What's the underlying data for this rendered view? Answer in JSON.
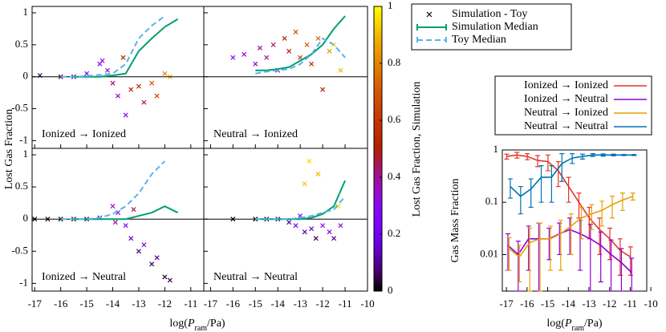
{
  "figure": {
    "y_label": "Lost Gas Fraction",
    "x_label_parts": [
      "log(",
      "P",
      "ram",
      "/Pa)"
    ],
    "colorbar": {
      "label": "Lost Gas Fraction, Simulation",
      "lim": [
        0,
        1
      ],
      "ticks": [
        0,
        0.2,
        0.4,
        0.6,
        0.8,
        1
      ]
    }
  },
  "chart_data": [
    {
      "type": "scatter",
      "label": "Ionized → Ionized",
      "xlim": [
        -17.1,
        -10.5
      ],
      "ylim": [
        -1.12,
        1.1
      ],
      "xticks": [
        -17,
        -16,
        -15,
        -14,
        -13,
        -12,
        -11
      ],
      "yticks": [
        -1,
        -0.5,
        0,
        0.5,
        1
      ],
      "series": [
        {
          "name": "Simulation - Toy",
          "x": [
            -16.8,
            -16,
            -15.5,
            -15,
            -14.5,
            -14.2,
            -14,
            -13.8,
            -13.5,
            -13.3,
            -13,
            -12.8,
            -12.5,
            -12.3,
            -12,
            -11.8,
            -13.6,
            -14.4
          ],
          "values": [
            0.02,
            0,
            0,
            0.05,
            0.2,
            0.1,
            -0.1,
            -0.3,
            -0.6,
            -0.2,
            -0.15,
            -0.4,
            -0.1,
            -0.3,
            0.05,
            0,
            0.3,
            0.25
          ],
          "c": [
            0.05,
            0.05,
            0.1,
            0.2,
            0.3,
            0.35,
            0.4,
            0.35,
            0.3,
            0.5,
            0.55,
            0.45,
            0.7,
            0.65,
            0.8,
            0.9,
            0.5,
            0.3
          ]
        },
        {
          "name": "Simulation Median",
          "color": "#009e73",
          "x": [
            -15.5,
            -15,
            -14.5,
            -14,
            -13.5,
            -13,
            -12.5,
            -12,
            -11.5
          ],
          "values": [
            0,
            0,
            0,
            0.02,
            0.05,
            0.4,
            0.6,
            0.78,
            0.9
          ]
        },
        {
          "name": "Toy Median",
          "color": "#56b4e9",
          "dashed": true,
          "x": [
            -16,
            -15.5,
            -15,
            -14.5,
            -14,
            -13.5,
            -13,
            -12.5,
            -12
          ],
          "values": [
            0,
            0,
            0.01,
            0.03,
            0.05,
            0.2,
            0.6,
            0.8,
            0.95
          ]
        }
      ]
    },
    {
      "type": "scatter",
      "label": "Neutral → Ionized",
      "xlim": [
        -17.3,
        -10
      ],
      "ylim": [
        -1.12,
        1.1
      ],
      "xticks": [
        -17,
        -16,
        -15,
        -14,
        -13,
        -12,
        -11,
        -10
      ],
      "yticks": [
        -1,
        -0.5,
        0,
        0.5,
        1
      ],
      "series": [
        {
          "x": [
            -16,
            -15.5,
            -15,
            -14.8,
            -14.5,
            -14.2,
            -14,
            -13.7,
            -13.5,
            -13.2,
            -13,
            -12.7,
            -12.5,
            -12.2,
            -12,
            -11.7,
            -11.5,
            -11.2
          ],
          "values": [
            0.3,
            0.35,
            0.2,
            0.45,
            0.3,
            0.5,
            0.1,
            0.6,
            0.4,
            0.7,
            0.3,
            0.5,
            0.2,
            0.6,
            -0.2,
            0.4,
            0.5,
            0.1
          ],
          "c": [
            0.3,
            0.35,
            0.35,
            0.4,
            0.4,
            0.45,
            0.3,
            0.55,
            0.5,
            0.65,
            0.6,
            0.7,
            0.55,
            0.75,
            0.5,
            0.85,
            0.95,
            0.9
          ]
        },
        {
          "color": "#009e73",
          "x": [
            -15,
            -14.5,
            -14,
            -13.5,
            -13,
            -12.5,
            -12,
            -11.5,
            -11
          ],
          "values": [
            0.1,
            0.1,
            0.12,
            0.15,
            0.25,
            0.35,
            0.5,
            0.75,
            0.95
          ]
        },
        {
          "color": "#56b4e9",
          "dashed": true,
          "x": [
            -15,
            -14.5,
            -14,
            -13.5,
            -13,
            -12.5,
            -12,
            -11.5,
            -11
          ],
          "values": [
            0.05,
            0.08,
            0.1,
            0.12,
            0.2,
            0.35,
            0.6,
            0.5,
            0.3
          ]
        }
      ]
    },
    {
      "type": "scatter",
      "label": "Ionized → Neutral",
      "xlim": [
        -17.1,
        -10.5
      ],
      "ylim": [
        -1.12,
        1.1
      ],
      "xticks": [
        -17,
        -16,
        -15,
        -14,
        -13,
        -12,
        -11
      ],
      "yticks": [
        -1,
        -0.5,
        0,
        0.5,
        1
      ],
      "series": [
        {
          "x": [
            -17,
            -16.5,
            -16,
            -15.5,
            -15,
            -14.5,
            -14,
            -13.8,
            -13.5,
            -13.3,
            -13,
            -12.8,
            -12.5,
            -12.3,
            -12,
            -11.8,
            -13.9,
            -13.2
          ],
          "values": [
            0,
            0,
            0,
            0,
            0,
            0.02,
            0.2,
            0.1,
            -0.1,
            -0.3,
            -0.5,
            -0.4,
            -0.7,
            -0.6,
            -0.9,
            -0.95,
            -0.05,
            0.15
          ],
          "c": [
            0,
            0,
            0,
            0.02,
            0.05,
            0.1,
            0.35,
            0.3,
            0.2,
            0.15,
            0.1,
            0.2,
            0.05,
            0.1,
            0.02,
            0.05,
            0.4,
            0.45
          ]
        },
        {
          "color": "#009e73",
          "x": [
            -15.5,
            -15,
            -14.5,
            -14,
            -13.5,
            -13,
            -12.5,
            -12,
            -11.5
          ],
          "values": [
            0,
            0,
            0,
            0,
            0,
            0.05,
            0.1,
            0.2,
            0.1
          ]
        },
        {
          "color": "#56b4e9",
          "dashed": true,
          "x": [
            -16,
            -15.5,
            -15,
            -14.5,
            -14,
            -13.5,
            -13,
            -12.5,
            -12
          ],
          "values": [
            0,
            0,
            0,
            0.02,
            0.08,
            0.2,
            0.4,
            0.7,
            0.9
          ]
        }
      ]
    },
    {
      "type": "scatter",
      "label": "Neutral → Neutral",
      "xlim": [
        -17.3,
        -10
      ],
      "ylim": [
        -1.12,
        1.1
      ],
      "xticks": [
        -17,
        -16,
        -15,
        -14,
        -13,
        -12,
        -11,
        -10
      ],
      "yticks": [
        -1,
        -0.5,
        0,
        0.5,
        1
      ],
      "series": [
        {
          "x": [
            -16,
            -15,
            -14.5,
            -14,
            -13.5,
            -13.2,
            -13,
            -12.8,
            -12.5,
            -12.3,
            -12,
            -11.7,
            -11.5,
            -11.2,
            -12.6,
            -12.2,
            -12.8,
            -11.3
          ],
          "values": [
            0,
            0,
            0,
            0,
            -0.05,
            -0.1,
            0.05,
            -0.2,
            -0.15,
            -0.3,
            -0.1,
            -0.2,
            -0.3,
            -0.1,
            0.9,
            0.7,
            0.55,
            0.2
          ],
          "c": [
            0,
            0,
            0.02,
            0.05,
            0.1,
            0.2,
            0.3,
            0.1,
            0.15,
            0.05,
            0.3,
            0.2,
            0.1,
            0.35,
            0.95,
            0.9,
            0.92,
            0.95
          ]
        },
        {
          "color": "#009e73",
          "x": [
            -15,
            -14.5,
            -14,
            -13.5,
            -13,
            -12.5,
            -12,
            -11.5,
            -11
          ],
          "values": [
            0,
            0,
            0,
            0,
            0,
            0.02,
            0.08,
            0.2,
            0.6
          ]
        },
        {
          "color": "#56b4e9",
          "dashed": true,
          "x": [
            -15,
            -14.5,
            -14,
            -13.5,
            -13,
            -12.5,
            -12,
            -11.5,
            -11
          ],
          "values": [
            0,
            0,
            0,
            0,
            0.02,
            0.05,
            0.1,
            0.15,
            0.35
          ]
        }
      ]
    },
    {
      "type": "line",
      "y_label": "Gas Mass Fraction",
      "x_label_parts": [
        "log(",
        "P",
        "ram",
        "/Pa)"
      ],
      "log_y": true,
      "xlim": [
        -17.2,
        -10.2
      ],
      "ylim": [
        0.002,
        1
      ],
      "xticks": [
        -17,
        -16,
        -15,
        -14,
        -13,
        -12,
        -11,
        -10
      ],
      "yticks": [
        0.01,
        0.1,
        1
      ],
      "x": [
        -16.9,
        -16.4,
        -15.9,
        -15.4,
        -14.9,
        -14.4,
        -13.9,
        -13.4,
        -12.9,
        -12.4,
        -11.9,
        -11.4,
        -10.9
      ],
      "series": [
        {
          "name": "Ionized → Ionized",
          "color": "#e5342a",
          "values": [
            0.75,
            0.8,
            0.75,
            0.63,
            0.6,
            0.4,
            0.2,
            0.1,
            0.05,
            0.03,
            0.02,
            0.012,
            0.009
          ],
          "errors": [
            0.08,
            0.1,
            0.1,
            0.15,
            0.2,
            0.2,
            0.1,
            0.05,
            0.03,
            0.02,
            0.012,
            0.008,
            0.005
          ]
        },
        {
          "name": "Ionized → Neutral",
          "color": "#9400d3",
          "values": [
            0.015,
            0.01,
            0.02,
            0.02,
            0.02,
            0.025,
            0.03,
            0.025,
            0.02,
            0.015,
            0.01,
            0.007,
            0.0045
          ],
          "errors": [
            0.01,
            0.008,
            0.015,
            0.02,
            0.012,
            0.015,
            0.02,
            0.02,
            0.018,
            0.012,
            0.009,
            0.006,
            0.004
          ]
        },
        {
          "name": "Neutral → Ionized",
          "color": "#e69f00",
          "values": [
            0.013,
            0.009,
            0.017,
            0.02,
            0.02,
            0.025,
            0.035,
            0.05,
            0.06,
            0.07,
            0.09,
            0.11,
            0.13
          ],
          "errors": [
            0.008,
            0.006,
            0.015,
            0.02,
            0.015,
            0.02,
            0.025,
            0.03,
            0.03,
            0.035,
            0.04,
            0.04,
            0.02
          ]
        },
        {
          "name": "Neutral → Neutral",
          "color": "#0072b2",
          "values": [
            0.2,
            0.13,
            0.18,
            0.3,
            0.3,
            0.55,
            0.7,
            0.75,
            0.8,
            0.8,
            0.8,
            0.8,
            0.8
          ],
          "errors": [
            0.08,
            0.07,
            0.1,
            0.2,
            0.2,
            0.3,
            0.15,
            0.08,
            0.05,
            0.04,
            0.03,
            0.02,
            0.02
          ]
        }
      ]
    }
  ]
}
